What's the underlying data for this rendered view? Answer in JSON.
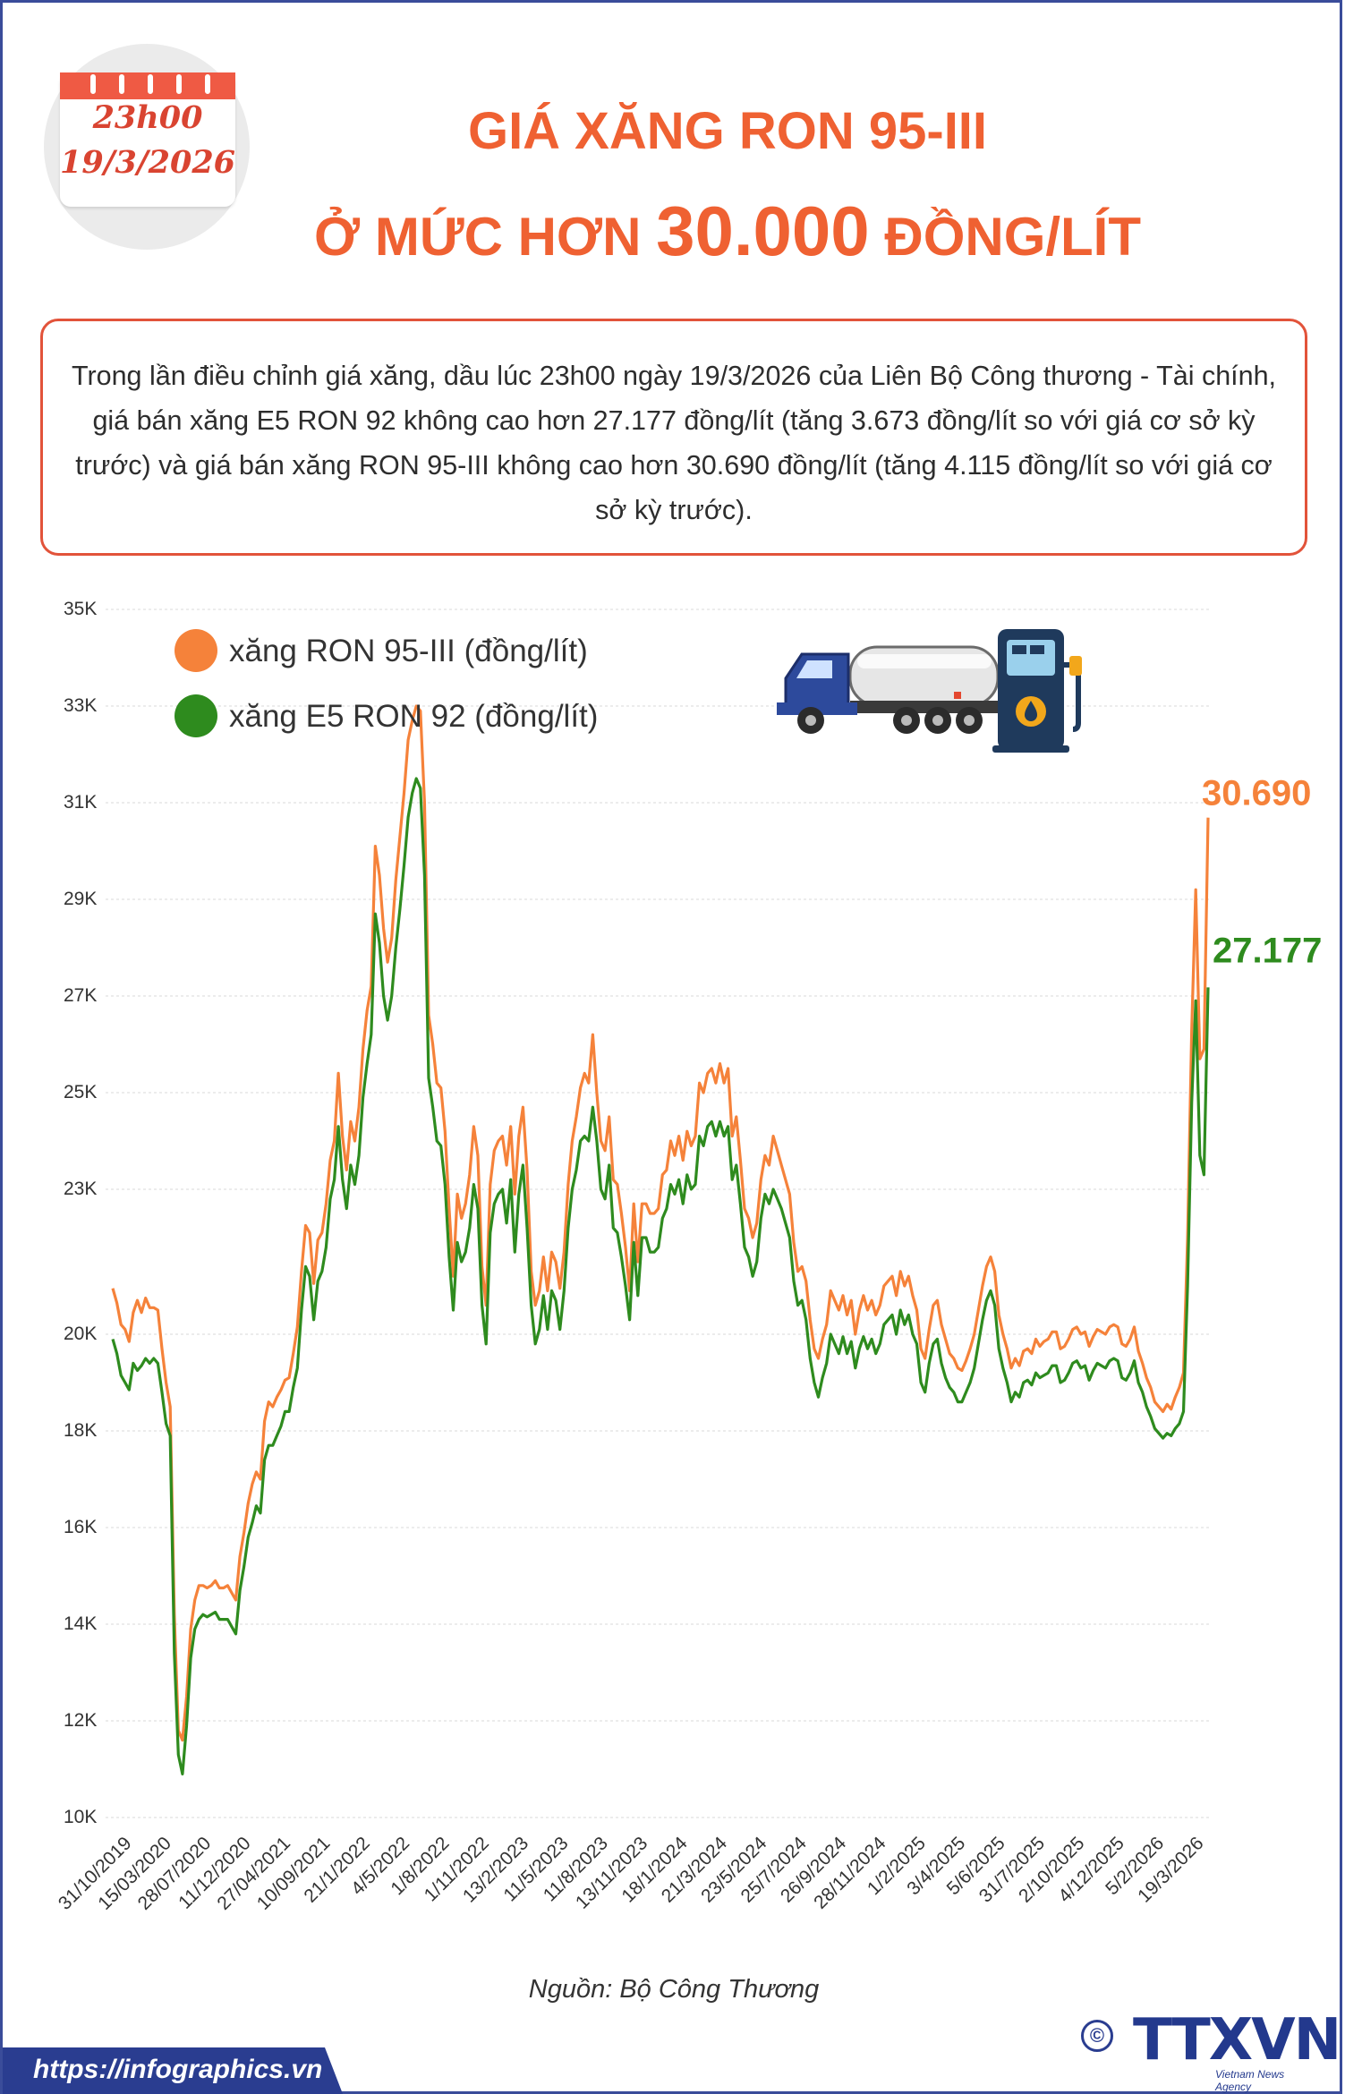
{
  "calendar": {
    "time": "23h00",
    "date": "19/3/2026"
  },
  "title": {
    "line1": "GIÁ XĂNG RON 95-III",
    "line2_prefix": "Ở MỨC HƠN",
    "line2_number": "30.000",
    "line2_suffix": "ĐỒNG/LÍT"
  },
  "intro": "Trong lần điều chỉnh giá xăng, dầu lúc 23h00 ngày 19/3/2026 của Liên Bộ Công thương - Tài chính, giá bán xăng E5 RON 92 không cao hơn 27.177 đồng/lít (tăng 3.673 đồng/lít so với giá cơ sở kỳ trước) và giá bán xăng RON 95-III không cao hơn 30.690 đồng/lít (tăng 4.115 đồng/lít so với giá cơ sở kỳ trước).",
  "colors": {
    "accent": "#ef6132",
    "ron95": "#f5823a",
    "e5ron92": "#2e8b1e",
    "footer": "#2a3d90"
  },
  "chart_data": {
    "type": "line",
    "title": "",
    "xlabel": "",
    "ylabel": "",
    "y_tick_labels": [
      "10K",
      "12K",
      "14K",
      "16K",
      "18K",
      "20K",
      "23K",
      "25K",
      "27K",
      "29K",
      "31K",
      "33K",
      "35K"
    ],
    "x_tick_labels": [
      "31/10/2019",
      "15/03/2020",
      "28/07/2020",
      "11/12/2020",
      "27/04/2021",
      "10/09/2021",
      "21/1/2022",
      "4/5/2022",
      "1/8/2022",
      "1/11/2022",
      "13/2/2023",
      "11/5/2023",
      "11/8/2023",
      "13/11/2023",
      "18/1/2024",
      "21/3/2024",
      "23/5/2024",
      "25/7/2024",
      "26/9/2024",
      "28/11/2024",
      "1/2/2025",
      "3/4/2025",
      "5/6/2025",
      "31/7/2025",
      "2/10/2025",
      "4/12/2025",
      "5/2/2026",
      "19/3/2026"
    ],
    "legend_position": "top-left",
    "grid": true,
    "series": [
      {
        "name": "xăng RON 95-III (đồng/lít)",
        "color": "#f5823a",
        "end_label": "30.690",
        "values": [
          20950,
          20650,
          20200,
          20100,
          19850,
          20450,
          20700,
          20450,
          20750,
          20550,
          20550,
          20500,
          19700,
          19000,
          18500,
          14200,
          11800,
          11600,
          12500,
          13900,
          14500,
          14800,
          14800,
          14750,
          14800,
          14900,
          14750,
          14750,
          14800,
          14650,
          14500,
          15400,
          15900,
          16500,
          16900,
          17150,
          17000,
          18200,
          18600,
          18500,
          18700,
          18850,
          19050,
          19100,
          19600,
          20150,
          21300,
          22250,
          22100,
          21050,
          21950,
          22100,
          22700,
          23600,
          24000,
          25400,
          24100,
          23400,
          24400,
          24000,
          24700,
          25900,
          26700,
          27200,
          30100,
          29500,
          28400,
          27700,
          28200,
          29400,
          30300,
          31200,
          32300,
          32700,
          33000,
          32900,
          31000,
          26600,
          26000,
          25200,
          25100,
          24200,
          22600,
          21200,
          22900,
          22400,
          22700,
          23300,
          24300,
          23700,
          21400,
          20600,
          23100,
          23800,
          24000,
          24100,
          23500,
          24300,
          22900,
          24100,
          24700,
          23400,
          21300,
          20600,
          20900,
          21600,
          20900,
          21700,
          21500,
          20950,
          21700,
          23100,
          24000,
          24500,
          25100,
          25400,
          25200,
          26200,
          25000,
          24000,
          23800,
          24500,
          23200,
          23100,
          22500,
          21800,
          20900,
          22700,
          21500,
          22700,
          22700,
          22500,
          22500,
          22600,
          23300,
          23400,
          24000,
          23700,
          24100,
          23600,
          24200,
          23900,
          24100,
          25200,
          25000,
          25400,
          25500,
          25200,
          25600,
          25200,
          25500,
          24100,
          24500,
          23600,
          22600,
          22400,
          22000,
          22300,
          23200,
          23700,
          23500,
          24100,
          23800,
          23500,
          23200,
          22900,
          21900,
          21300,
          21400,
          21100,
          20300,
          19700,
          19500,
          19900,
          20200,
          20900,
          20700,
          20500,
          20800,
          20400,
          20700,
          20000,
          20500,
          20800,
          20500,
          20700,
          20400,
          20600,
          21000,
          21100,
          21200,
          20800,
          21300,
          21000,
          21200,
          20800,
          20500,
          19700,
          19500,
          20100,
          20600,
          20700,
          20200,
          19900,
          19600,
          19500,
          19300,
          19250,
          19450,
          19700,
          20000,
          20500,
          21000,
          21400,
          21600,
          21300,
          20400,
          20000,
          19700,
          19300,
          19500,
          19350,
          19650,
          19700,
          19600,
          19900,
          19750,
          19850,
          19900,
          20050,
          20050,
          19700,
          19750,
          19900,
          20100,
          20150,
          20000,
          20050,
          19750,
          19950,
          20100,
          20050,
          20000,
          20150,
          20200,
          20150,
          19800,
          19750,
          19900,
          20150,
          19650,
          19400,
          19100,
          18900,
          18600,
          18500,
          18400,
          18550,
          18450,
          18700,
          18900,
          19200,
          22000,
          26300,
          29200,
          25700,
          25900,
          30690
        ]
      },
      {
        "name": "xăng E5 RON 92 (đồng/lít)",
        "color": "#2e8b1e",
        "end_label": "27.177",
        "values": [
          19900,
          19600,
          19150,
          19000,
          18850,
          19400,
          19250,
          19350,
          19500,
          19400,
          19500,
          19400,
          18800,
          18150,
          17900,
          13400,
          11300,
          10900,
          11900,
          13300,
          13900,
          14100,
          14200,
          14150,
          14200,
          14250,
          14100,
          14100,
          14100,
          13950,
          13800,
          14700,
          15200,
          15800,
          16100,
          16450,
          16300,
          17400,
          17700,
          17700,
          17900,
          18100,
          18400,
          18400,
          18900,
          19300,
          20500,
          21400,
          21200,
          20300,
          21100,
          21300,
          21800,
          22800,
          23200,
          24300,
          23200,
          22600,
          23500,
          23100,
          23700,
          24900,
          25600,
          26200,
          28700,
          28100,
          27000,
          26500,
          27000,
          28000,
          28800,
          29700,
          30700,
          31200,
          31500,
          31300,
          29500,
          25300,
          24700,
          24000,
          23900,
          23100,
          21600,
          20500,
          21900,
          21500,
          21700,
          22200,
          23100,
          22600,
          20600,
          19800,
          22100,
          22700,
          22900,
          23000,
          22300,
          23200,
          21700,
          22900,
          23500,
          22200,
          20600,
          19800,
          20100,
          20800,
          20100,
          20900,
          20700,
          20100,
          20900,
          22200,
          23000,
          23400,
          24000,
          24100,
          24000,
          24700,
          24000,
          23000,
          22800,
          23500,
          22200,
          22100,
          21600,
          21000,
          20300,
          21900,
          20800,
          22000,
          22000,
          21700,
          21700,
          21800,
          22400,
          22600,
          23100,
          22900,
          23200,
          22700,
          23300,
          23000,
          23100,
          24100,
          23900,
          24300,
          24400,
          24100,
          24400,
          24100,
          24300,
          23200,
          23500,
          22700,
          21800,
          21600,
          21200,
          21500,
          22400,
          22900,
          22700,
          23000,
          22800,
          22600,
          22300,
          22000,
          21100,
          20600,
          20700,
          20300,
          19500,
          19000,
          18700,
          19100,
          19400,
          20000,
          19800,
          19600,
          19950,
          19600,
          19850,
          19300,
          19700,
          19950,
          19700,
          19900,
          19600,
          19800,
          20200,
          20300,
          20400,
          20000,
          20500,
          20200,
          20400,
          20000,
          19800,
          19000,
          18800,
          19400,
          19800,
          19900,
          19400,
          19100,
          18900,
          18800,
          18600,
          18600,
          18800,
          19000,
          19300,
          19800,
          20300,
          20700,
          20900,
          20600,
          19700,
          19300,
          19000,
          18600,
          18800,
          18700,
          19000,
          19050,
          18950,
          19200,
          19100,
          19150,
          19200,
          19350,
          19350,
          19000,
          19050,
          19200,
          19400,
          19450,
          19300,
          19350,
          19050,
          19250,
          19400,
          19350,
          19300,
          19450,
          19500,
          19450,
          19100,
          19050,
          19200,
          19450,
          19000,
          18800,
          18500,
          18300,
          18050,
          17950,
          17850,
          17950,
          17900,
          18050,
          18150,
          18400,
          21000,
          24800,
          26900,
          23700,
          23300,
          27177
        ]
      }
    ]
  },
  "source": "Nguồn: Bộ Công Thương",
  "footer": {
    "url": "https://infographics.vn",
    "copyright": "©",
    "logo": "TTXVN",
    "logo_sub": "Vietnam News Agency"
  }
}
